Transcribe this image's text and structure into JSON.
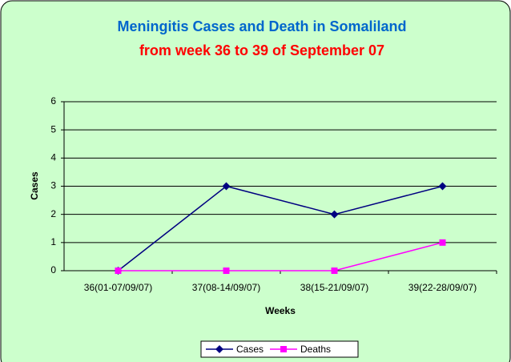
{
  "chart_data": {
    "type": "line",
    "title": "Meningitis Cases and Death in Somaliland",
    "subtitle": "from week 36 to 39 of September 07",
    "title_color": "#0066cc",
    "subtitle_color": "#ff0000",
    "x_label": "Weeks",
    "y_label": "Cases",
    "categories": [
      "36(01-07/09/07)",
      "37(08-14/09/07)",
      "38(15-21/09/07)",
      "39(22-28/09/07)"
    ],
    "series": [
      {
        "name": "Cases",
        "color": "#000080",
        "marker": "diamond",
        "values": [
          0,
          3,
          2,
          3
        ]
      },
      {
        "name": "Deaths",
        "color": "#ff00ff",
        "marker": "square",
        "values": [
          0,
          0,
          0,
          1
        ]
      }
    ],
    "ylim": [
      0,
      6
    ],
    "yticks": [
      0,
      1,
      2,
      3,
      4,
      5,
      6
    ],
    "grid": true,
    "legend": "bottom",
    "background": "#ccffcc"
  }
}
